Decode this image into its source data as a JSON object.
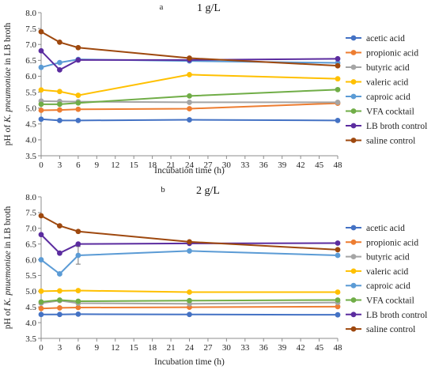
{
  "chart_data": [
    {
      "type": "line",
      "panel_letter": "a",
      "title": "1 g/L",
      "xlabel": "Incubation time (h)",
      "ylabel_prefix": "pH of ",
      "ylabel_italic": "K. pneumoniae",
      "ylabel_suffix": " in LB broth",
      "xlim": [
        0,
        48
      ],
      "ylim": [
        3.5,
        8.0
      ],
      "xticks": [
        0,
        3,
        6,
        9,
        12,
        15,
        18,
        21,
        24,
        27,
        30,
        33,
        36,
        39,
        42,
        45,
        48
      ],
      "yticks": [
        3.5,
        4.0,
        4.5,
        5.0,
        5.5,
        6.0,
        6.5,
        7.0,
        7.5,
        8.0
      ],
      "legend_position": "right",
      "x": [
        0,
        3,
        6,
        24,
        48
      ],
      "series": [
        {
          "name": "acetic acid",
          "color": "#4472C4",
          "values": [
            4.65,
            4.61,
            4.61,
            4.63,
            4.61
          ]
        },
        {
          "name": "propionic acid",
          "color": "#ED7D31",
          "values": [
            4.93,
            4.94,
            4.96,
            4.98,
            5.15
          ]
        },
        {
          "name": "butyric acid",
          "color": "#A5A5A5",
          "values": [
            5.22,
            5.21,
            5.2,
            5.18,
            5.18
          ]
        },
        {
          "name": "valeric acid",
          "color": "#FFC000",
          "values": [
            5.57,
            5.52,
            5.4,
            6.05,
            5.92
          ]
        },
        {
          "name": "caproic acid",
          "color": "#5B9BD5",
          "values": [
            6.28,
            6.43,
            6.53,
            6.48,
            6.42
          ]
        },
        {
          "name": "VFA cocktail",
          "color": "#70AD47",
          "values": [
            5.12,
            5.12,
            5.16,
            5.38,
            5.58
          ]
        },
        {
          "name": "LB broth control",
          "color": "#5B2C9F",
          "values": [
            6.8,
            6.2,
            6.51,
            6.51,
            6.55
          ]
        },
        {
          "name": "saline control",
          "color": "#9E480E",
          "values": [
            7.4,
            7.07,
            6.9,
            6.57,
            6.33
          ]
        }
      ]
    },
    {
      "type": "line",
      "panel_letter": "b",
      "title": "2 g/L",
      "xlabel": "Incubation time (h)",
      "ylabel_prefix": "pH of ",
      "ylabel_italic": "K. pnuemoniae",
      "ylabel_suffix": " in LB broth",
      "xlim": [
        0,
        48
      ],
      "ylim": [
        3.5,
        8.0
      ],
      "xticks": [
        0,
        3,
        6,
        9,
        12,
        15,
        18,
        21,
        24,
        27,
        30,
        33,
        36,
        39,
        42,
        45,
        48
      ],
      "yticks": [
        3.5,
        4.0,
        4.5,
        5.0,
        5.5,
        6.0,
        6.5,
        7.0,
        7.5,
        8.0
      ],
      "legend_position": "right",
      "x": [
        0,
        3,
        6,
        24,
        48
      ],
      "series": [
        {
          "name": "acetic acid",
          "color": "#4472C4",
          "values": [
            4.26,
            4.26,
            4.27,
            4.26,
            4.25
          ]
        },
        {
          "name": "propionic acid",
          "color": "#ED7D31",
          "values": [
            4.45,
            4.47,
            4.48,
            4.49,
            4.51
          ]
        },
        {
          "name": "butyric acid",
          "color": "#A5A5A5",
          "values": [
            4.62,
            4.7,
            4.62,
            4.6,
            4.64
          ]
        },
        {
          "name": "valeric acid",
          "color": "#FFC000",
          "values": [
            5.0,
            5.01,
            5.02,
            4.97,
            4.97
          ]
        },
        {
          "name": "caproic acid",
          "color": "#5B9BD5",
          "values": [
            6.0,
            5.55,
            6.14,
            6.28,
            6.14
          ],
          "error": [
            0,
            0,
            0.28,
            0,
            0
          ]
        },
        {
          "name": "VFA cocktail",
          "color": "#70AD47",
          "values": [
            4.66,
            4.72,
            4.68,
            4.7,
            4.72
          ]
        },
        {
          "name": "LB broth control",
          "color": "#5B2C9F",
          "values": [
            6.8,
            6.21,
            6.5,
            6.52,
            6.53
          ]
        },
        {
          "name": "saline control",
          "color": "#9E480E",
          "values": [
            7.4,
            7.08,
            6.9,
            6.57,
            6.32
          ]
        }
      ]
    }
  ]
}
